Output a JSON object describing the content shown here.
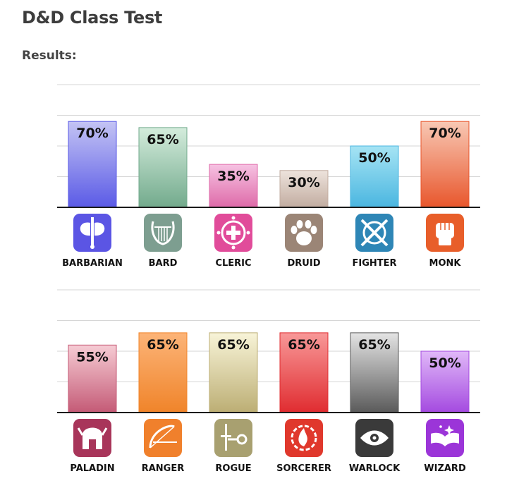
{
  "page": {
    "title": "D&D Class Test",
    "subtitle": "Results:"
  },
  "chart_data": [
    {
      "type": "bar",
      "ylim": [
        0,
        100
      ],
      "grid": true,
      "categories": [
        "BARBARIAN",
        "BARD",
        "CLERIC",
        "DRUID",
        "FIGHTER",
        "MONK"
      ],
      "values": [
        70,
        65,
        35,
        30,
        50,
        70
      ],
      "value_labels": [
        "70%",
        "65%",
        "35%",
        "30%",
        "50%",
        "70%"
      ],
      "bar_colors": [
        [
          "#c4c4f4",
          "#5a5ae6"
        ],
        [
          "#d4ecdc",
          "#72aa8c"
        ],
        [
          "#f6c2e2",
          "#de6aa8"
        ],
        [
          "#ede3dc",
          "#c2aca0"
        ],
        [
          "#a6e4f4",
          "#4ab6e0"
        ],
        [
          "#f8c8b4",
          "#e8562c"
        ]
      ],
      "icon_colors": [
        "#5b55e4",
        "#7d9e90",
        "#e14c9a",
        "#9b8576",
        "#2e86b6",
        "#e85e2a"
      ],
      "icons": [
        "battle-axe-icon",
        "lyre-icon",
        "holy-cross-icon",
        "paw-icon",
        "crossed-swords-icon",
        "fist-icon"
      ]
    },
    {
      "type": "bar",
      "ylim": [
        0,
        100
      ],
      "grid": true,
      "categories": [
        "PALADIN",
        "RANGER",
        "ROGUE",
        "SORCERER",
        "WARLOCK",
        "WIZARD"
      ],
      "values": [
        55,
        65,
        65,
        65,
        65,
        50
      ],
      "value_labels": [
        "55%",
        "65%",
        "65%",
        "65%",
        "65%",
        "50%"
      ],
      "bar_colors": [
        [
          "#f6ccd4",
          "#c45a76"
        ],
        [
          "#fcb478",
          "#f0842a"
        ],
        [
          "#f8f4d8",
          "#bcae74"
        ],
        [
          "#f89898",
          "#e02c30"
        ],
        [
          "#e4e4e4",
          "#5a5a5a"
        ],
        [
          "#e0b8f8",
          "#a44ae0"
        ]
      ],
      "icon_colors": [
        "#a8355a",
        "#f0802c",
        "#a8a070",
        "#e0382c",
        "#3a3a3a",
        "#9b35d8"
      ],
      "icons": [
        "helmet-icon",
        "bow-icon",
        "dagger-key-icon",
        "flame-icon",
        "eye-icon",
        "spellbook-icon"
      ]
    }
  ]
}
